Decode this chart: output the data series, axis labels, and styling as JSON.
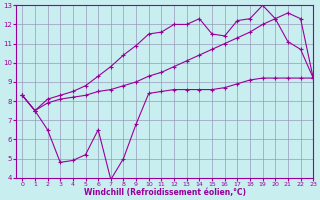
{
  "title": "",
  "xlabel": "Windchill (Refroidissement éolien,°C)",
  "ylabel": "",
  "background_color": "#c8eef0",
  "line_color": "#990099",
  "grid_color": "#9999bb",
  "xlim": [
    -0.5,
    23
  ],
  "ylim": [
    4,
    13
  ],
  "xticks": [
    0,
    1,
    2,
    3,
    4,
    5,
    6,
    7,
    8,
    9,
    10,
    11,
    12,
    13,
    14,
    15,
    16,
    17,
    18,
    19,
    20,
    21,
    22,
    23
  ],
  "yticks": [
    4,
    5,
    6,
    7,
    8,
    9,
    10,
    11,
    12,
    13
  ],
  "line1_x": [
    0,
    1,
    2,
    3,
    4,
    5,
    6,
    7,
    8,
    9,
    10,
    11,
    12,
    13,
    14,
    15,
    16,
    17,
    18,
    19,
    20,
    21,
    22,
    23
  ],
  "line1_y": [
    8.3,
    7.5,
    7.9,
    8.1,
    8.2,
    8.3,
    8.5,
    8.6,
    8.8,
    9.0,
    9.3,
    9.5,
    9.8,
    10.1,
    10.4,
    10.7,
    11.0,
    11.3,
    11.6,
    12.0,
    12.3,
    12.6,
    12.3,
    9.2
  ],
  "line2_x": [
    0,
    1,
    2,
    3,
    4,
    5,
    6,
    7,
    8,
    9,
    10,
    11,
    12,
    13,
    14,
    15,
    16,
    17,
    18,
    19,
    20,
    21,
    22,
    23
  ],
  "line2_y": [
    8.3,
    7.5,
    8.1,
    8.3,
    8.5,
    8.8,
    9.3,
    9.8,
    10.4,
    10.9,
    11.5,
    11.6,
    12.0,
    12.0,
    12.3,
    11.5,
    11.4,
    12.2,
    12.3,
    13.0,
    12.3,
    11.1,
    10.7,
    9.2
  ],
  "line3_x": [
    0,
    1,
    2,
    3,
    4,
    5,
    6,
    7,
    8,
    9,
    10,
    11,
    12,
    13,
    14,
    15,
    16,
    17,
    18,
    19,
    20,
    21,
    22,
    23
  ],
  "line3_y": [
    8.3,
    7.5,
    6.5,
    4.8,
    4.9,
    5.2,
    6.5,
    3.9,
    5.0,
    6.8,
    8.4,
    8.5,
    8.6,
    8.6,
    8.6,
    8.6,
    8.7,
    8.9,
    9.1,
    9.2,
    9.2,
    9.2,
    9.2,
    9.2
  ]
}
